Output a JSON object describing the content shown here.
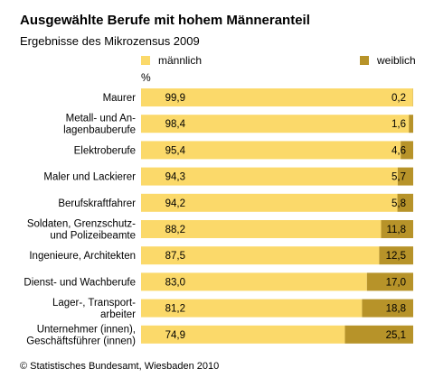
{
  "header": {
    "title": "Ausgewählte Berufe mit hohem Männeranteil",
    "subtitle": "Ergebnisse des Mikrozensus 2009"
  },
  "footer": {
    "source": "© Statistisches Bundesamt, Wiesbaden 2010"
  },
  "colors": {
    "maennlich": "#fbd96a",
    "weiblich": "#b79329"
  },
  "chart_data": {
    "type": "bar",
    "orientation": "horizontal",
    "stacked": true,
    "unit": "%",
    "xlim": [
      0,
      100
    ],
    "grid": false,
    "legend_position": "top",
    "categories": [
      [
        "Maurer"
      ],
      [
        "Metall- und An-",
        "lagenbauberufe"
      ],
      [
        "Elektroberufe"
      ],
      [
        "Maler und Lackierer"
      ],
      [
        "Berufskraftfahrer"
      ],
      [
        "Soldaten, Grenzschutz-",
        "und Polizeibeamte"
      ],
      [
        "Ingenieure, Architekten"
      ],
      [
        "Dienst- und Wachberufe"
      ],
      [
        "Lager-, Transport-",
        "arbeiter"
      ],
      [
        "Unternehmer (innen),",
        "Geschäftsführer (innen)"
      ]
    ],
    "series": [
      {
        "name": "männlich",
        "values": [
          99.9,
          98.4,
          95.4,
          94.3,
          94.2,
          88.2,
          87.5,
          83.0,
          81.2,
          74.9
        ],
        "labels": [
          "99,9",
          "98,4",
          "95,4",
          "94,3",
          "94,2",
          "88,2",
          "87,5",
          "83,0",
          "81,2",
          "74,9"
        ]
      },
      {
        "name": "weiblich",
        "values": [
          0.2,
          1.6,
          4.6,
          5.7,
          5.8,
          11.8,
          12.5,
          17.0,
          18.8,
          25.1
        ],
        "labels": [
          "0,2",
          "1,6",
          "4,6",
          "5,7",
          "5,8",
          "11,8",
          "12,5",
          "17,0",
          "18,8",
          "25,1"
        ]
      }
    ]
  }
}
